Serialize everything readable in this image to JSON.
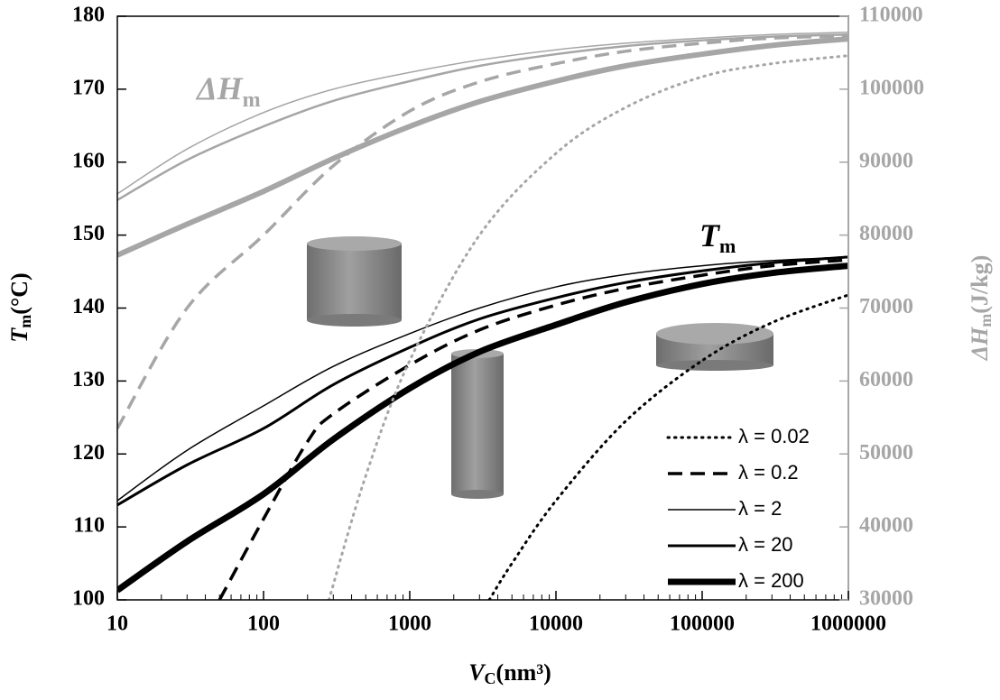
{
  "chart_data": {
    "type": "line",
    "x_label": [
      "V",
      "C",
      "(nm³)"
    ],
    "y_label": [
      "T",
      "m",
      "(°C)"
    ],
    "y2_label": [
      "ΔH",
      "m",
      "(J/kg)"
    ],
    "annotations": [
      {
        "text": [
          "ΔH",
          "m"
        ],
        "color": "#a6a6a6"
      },
      {
        "text": [
          "T",
          "m"
        ],
        "color": "#000000"
      }
    ],
    "xlog": true,
    "xminor": true,
    "xlim": [
      10,
      1000000
    ],
    "xticks": [
      10,
      100,
      1000,
      10000,
      100000,
      1000000
    ],
    "ylim": [
      100,
      180
    ],
    "yticks": [
      100,
      110,
      120,
      130,
      140,
      150,
      160,
      170,
      180
    ],
    "y2lim": [
      30000,
      110000
    ],
    "y2ticks": [
      30000,
      40000,
      50000,
      60000,
      70000,
      80000,
      90000,
      100000,
      110000
    ],
    "y2color": "#a6a6a6",
    "legend": "lower right",
    "series": [
      {
        "name": "λ = 0.02",
        "color": "#000000",
        "style": "dotted",
        "width": 3,
        "x": [
          3500,
          5000,
          10000,
          30000,
          100000,
          300000,
          1000000
        ],
        "values": [
          100,
          105,
          113.6,
          124.5,
          132.8,
          138,
          141.8
        ]
      },
      {
        "name": "λ = 0.2",
        "color": "#000000",
        "style": "dashed",
        "width": 3.5,
        "x": [
          50,
          100,
          200,
          300,
          1000,
          3000,
          10000,
          30000,
          100000,
          300000,
          1000000
        ],
        "values": [
          100,
          111.1,
          121.7,
          125.5,
          132.2,
          137,
          140.4,
          142.7,
          144.5,
          145.8,
          146.6
        ]
      },
      {
        "name": "λ = 2",
        "color": "#000000",
        "style": "solid",
        "width": 1.5,
        "x": [
          10,
          30,
          100,
          300,
          1000,
          3000,
          10000,
          30000,
          100000,
          300000,
          1000000
        ],
        "values": [
          113.6,
          120.5,
          126.6,
          132,
          136.5,
          140,
          142.9,
          144.6,
          145.8,
          146.5,
          147
        ]
      },
      {
        "name": "λ = 20",
        "color": "#000000",
        "style": "solid",
        "width": 3,
        "x": [
          10,
          30,
          100,
          300,
          1000,
          3000,
          10000,
          30000,
          100000,
          300000,
          1000000
        ],
        "values": [
          113,
          118.5,
          123.5,
          129.5,
          134.6,
          138.5,
          141.4,
          143.5,
          145.1,
          146.2,
          147
        ]
      },
      {
        "name": "λ = 200",
        "color": "#000000",
        "style": "solid",
        "width": 7,
        "x": [
          10,
          30,
          100,
          300,
          1000,
          3000,
          10000,
          30000,
          100000,
          300000,
          1000000
        ],
        "values": [
          101.3,
          108,
          114.5,
          122,
          129,
          134,
          137.7,
          140.8,
          143.3,
          144.8,
          145.8
        ]
      },
      {
        "color": "#a6a6a6",
        "style": "dotted",
        "width": 3,
        "axis": "y2",
        "x": [
          280,
          500,
          1000,
          3000,
          10000,
          30000,
          100000,
          300000,
          1000000
        ],
        "values": [
          30000,
          47000,
          62800,
          80000,
          91200,
          97500,
          101700,
          103500,
          104600
        ]
      },
      {
        "color": "#a6a6a6",
        "style": "dashed",
        "width": 3.5,
        "axis": "y2",
        "x": [
          10,
          30,
          100,
          300,
          1000,
          3000,
          10000,
          30000,
          100000,
          300000,
          1000000
        ],
        "values": [
          53500,
          70000,
          80000,
          89500,
          97000,
          101000,
          103500,
          105200,
          106300,
          107000,
          107300
        ]
      },
      {
        "color": "#a6a6a6",
        "style": "solid",
        "width": 1.5,
        "axis": "y2",
        "x": [
          10,
          30,
          100,
          300,
          1000,
          3000,
          10000,
          30000,
          100000,
          300000,
          1000000
        ],
        "values": [
          85650,
          91800,
          96800,
          100000,
          102300,
          104000,
          105400,
          106300,
          107000,
          107500,
          107800
        ]
      },
      {
        "color": "#a6a6a6",
        "style": "solid",
        "width": 2.5,
        "axis": "y2",
        "x": [
          10,
          30,
          100,
          300,
          1000,
          3000,
          10000,
          30000,
          100000,
          300000,
          1000000
        ],
        "values": [
          84800,
          90300,
          94900,
          98400,
          101100,
          103200,
          104800,
          105900,
          106700,
          107200,
          107500
        ]
      },
      {
        "color": "#a6a6a6",
        "style": "solid",
        "width": 6,
        "axis": "y2",
        "x": [
          10,
          30,
          100,
          300,
          1000,
          3000,
          10000,
          30000,
          100000,
          300000,
          1000000
        ],
        "values": [
          77250,
          81500,
          86000,
          90500,
          94900,
          98300,
          101100,
          103200,
          104800,
          106000,
          106900
        ]
      }
    ]
  }
}
